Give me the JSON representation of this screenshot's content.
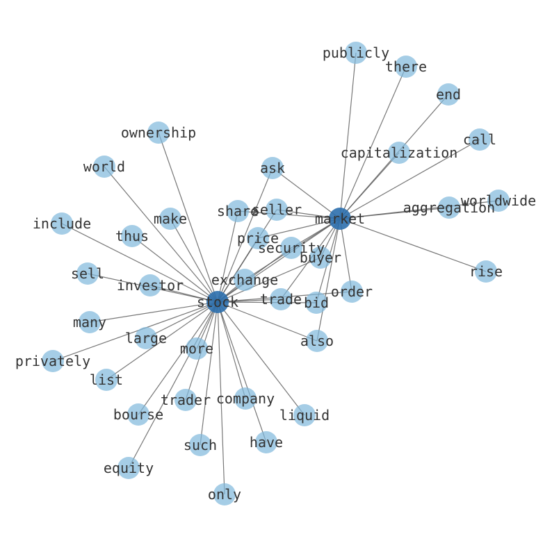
{
  "diagram": {
    "type": "network",
    "colors": {
      "hub": "#2c6fad",
      "leaf": "#7fb8dc",
      "edge": "#555555",
      "label": "#333333"
    },
    "hubs": [
      "stock",
      "market"
    ],
    "nodes": [
      "stock",
      "market",
      "publicly",
      "there",
      "end",
      "call",
      "capitalization",
      "worldwide",
      "aggregation",
      "rise",
      "ownership",
      "world",
      "ask",
      "share",
      "seller",
      "include",
      "make",
      "thus",
      "price",
      "security",
      "buyer",
      "sell",
      "investor",
      "exchange",
      "order",
      "trade",
      "bid",
      "many",
      "large",
      "also",
      "privately",
      "more",
      "list",
      "trader",
      "company",
      "bourse",
      "liquid",
      "such",
      "have",
      "equity",
      "only"
    ],
    "edges": [
      [
        "stock",
        "market"
      ],
      [
        "stock",
        "ownership"
      ],
      [
        "stock",
        "world"
      ],
      [
        "stock",
        "include"
      ],
      [
        "stock",
        "thus"
      ],
      [
        "stock",
        "make"
      ],
      [
        "stock",
        "sell"
      ],
      [
        "stock",
        "investor"
      ],
      [
        "stock",
        "many"
      ],
      [
        "stock",
        "privately"
      ],
      [
        "stock",
        "large"
      ],
      [
        "stock",
        "list"
      ],
      [
        "stock",
        "more"
      ],
      [
        "stock",
        "bourse"
      ],
      [
        "stock",
        "equity"
      ],
      [
        "stock",
        "trader"
      ],
      [
        "stock",
        "such"
      ],
      [
        "stock",
        "only"
      ],
      [
        "stock",
        "company"
      ],
      [
        "stock",
        "have"
      ],
      [
        "stock",
        "liquid"
      ],
      [
        "stock",
        "also"
      ],
      [
        "stock",
        "bid"
      ],
      [
        "stock",
        "trade"
      ],
      [
        "stock",
        "order"
      ],
      [
        "stock",
        "exchange"
      ],
      [
        "stock",
        "security"
      ],
      [
        "stock",
        "price"
      ],
      [
        "stock",
        "share"
      ],
      [
        "stock",
        "seller"
      ],
      [
        "stock",
        "ask"
      ],
      [
        "stock",
        "buyer"
      ],
      [
        "market",
        "publicly"
      ],
      [
        "market",
        "there"
      ],
      [
        "market",
        "end"
      ],
      [
        "market",
        "call"
      ],
      [
        "market",
        "capitalization"
      ],
      [
        "market",
        "worldwide"
      ],
      [
        "market",
        "aggregation"
      ],
      [
        "market",
        "rise"
      ],
      [
        "market",
        "ask"
      ],
      [
        "market",
        "seller"
      ],
      [
        "market",
        "share"
      ],
      [
        "market",
        "price"
      ],
      [
        "market",
        "security"
      ],
      [
        "market",
        "buyer"
      ],
      [
        "market",
        "exchange"
      ],
      [
        "market",
        "trade"
      ],
      [
        "market",
        "bid"
      ],
      [
        "market",
        "order"
      ],
      [
        "market",
        "also"
      ]
    ]
  }
}
